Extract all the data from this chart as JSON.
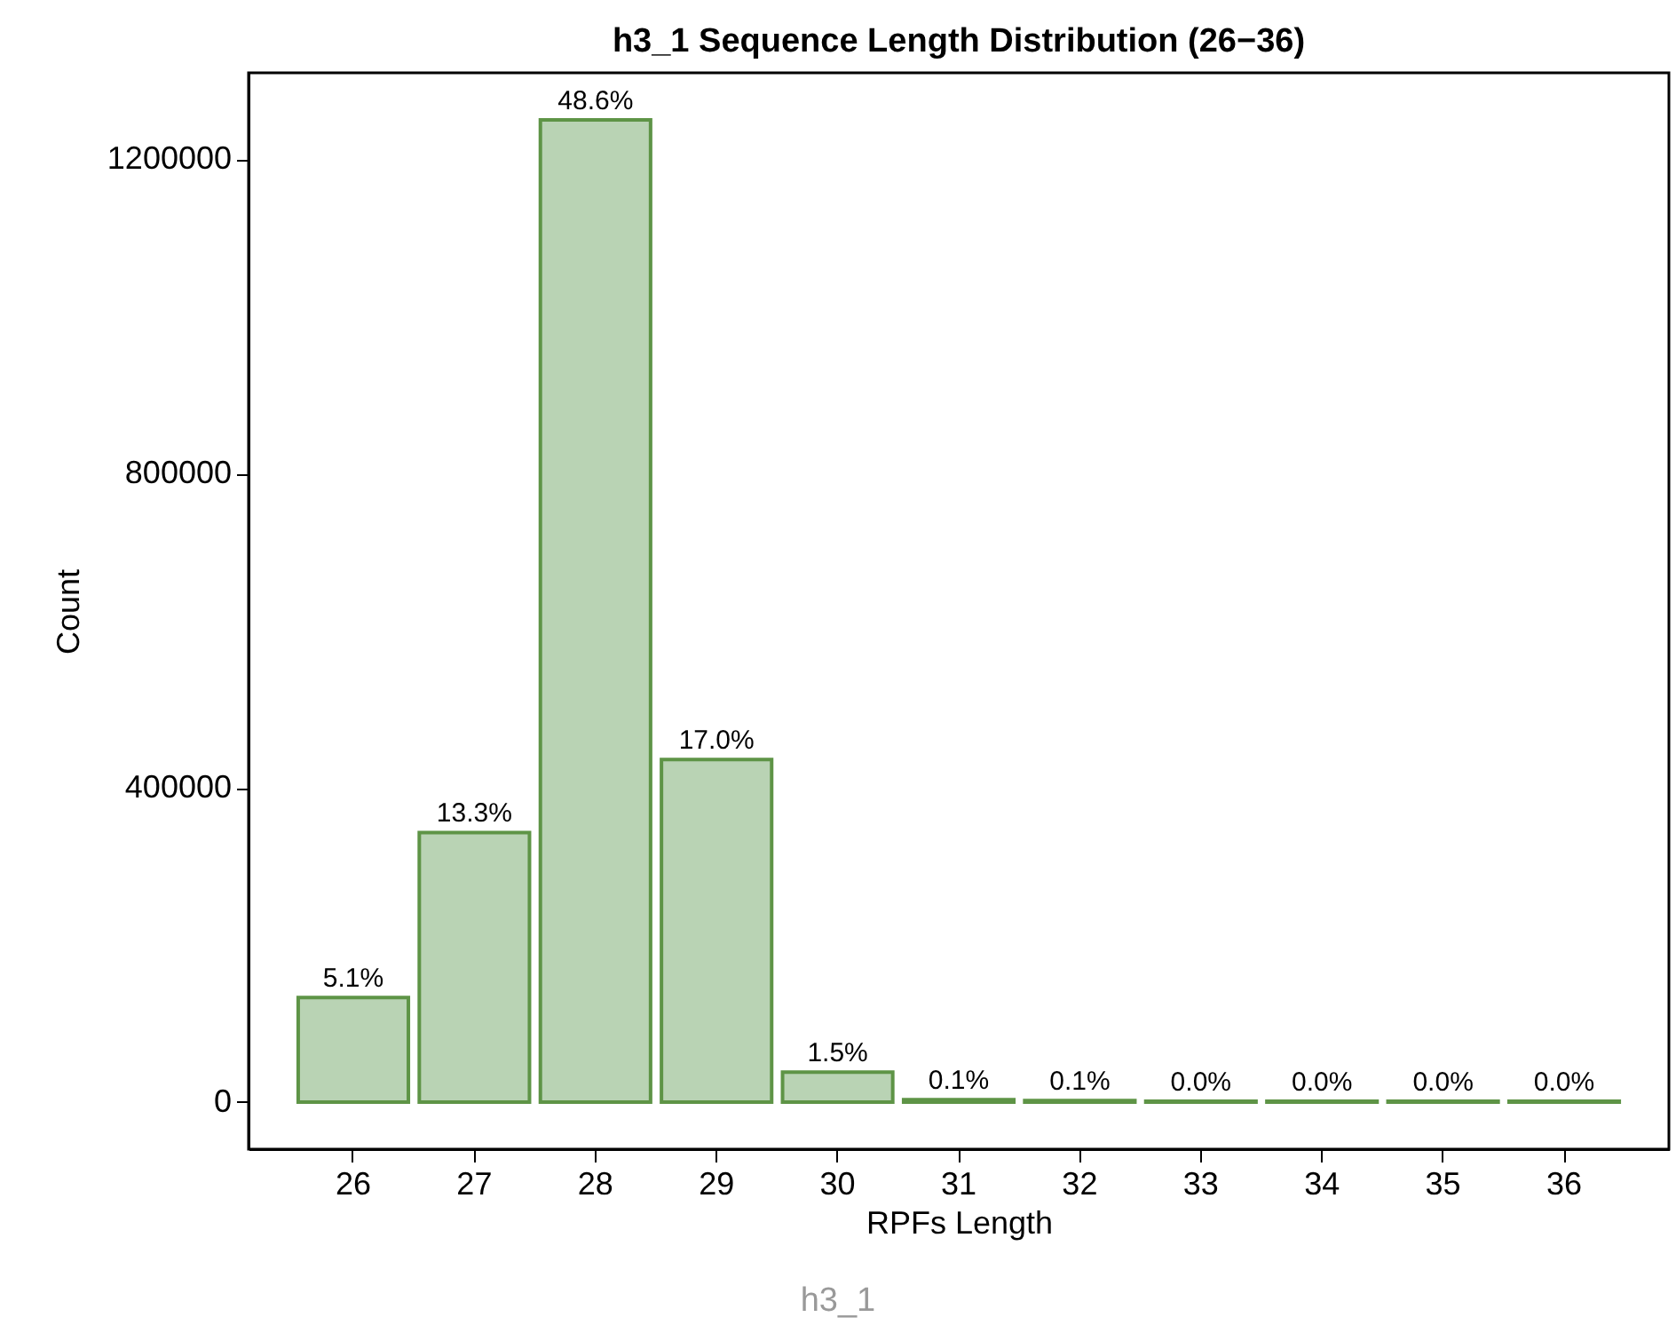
{
  "chart_data": {
    "type": "bar",
    "title": "h3_1 Sequence Length Distribution (26−36)",
    "xlabel": "RPFs Length",
    "ylabel": "Count",
    "categories": [
      "26",
      "27",
      "28",
      "29",
      "30",
      "31",
      "32",
      "33",
      "34",
      "35",
      "36"
    ],
    "values": [
      133000,
      343000,
      1250000,
      436000,
      38000,
      3000,
      2000,
      1000,
      1000,
      1000,
      1000
    ],
    "color": "#b9d3b4",
    "ylim": [
      -60000,
      1310000
    ],
    "yticks": [
      0,
      400000,
      800000,
      1200000
    ],
    "grid": false,
    "annotations": [
      {
        "text": "5.1%",
        "x": "26",
        "y": 133000
      },
      {
        "text": "13.3%",
        "x": "27",
        "y": 343000
      },
      {
        "text": "48.6%",
        "x": "28",
        "y": 1250000
      },
      {
        "text": "17.0%",
        "x": "29",
        "y": 436000
      },
      {
        "text": "1.5%",
        "x": "30",
        "y": 38000
      },
      {
        "text": "0.1%",
        "x": "31",
        "y": 3000
      },
      {
        "text": "0.1%",
        "x": "32",
        "y": 2000
      },
      {
        "text": "0.0%",
        "x": "33",
        "y": 1000
      },
      {
        "text": "0.0%",
        "x": "34",
        "y": 1000
      },
      {
        "text": "0.0%",
        "x": "35",
        "y": 1000
      },
      {
        "text": "0.0%",
        "x": "36",
        "y": 1000
      },
      "h3_1"
    ]
  }
}
